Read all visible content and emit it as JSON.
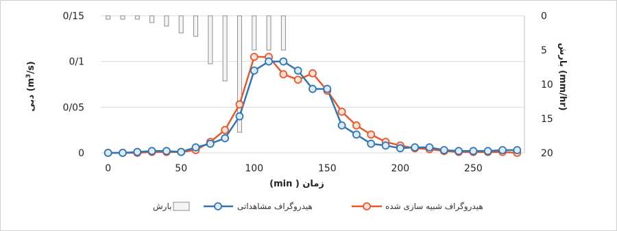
{
  "chart_data": {
    "type": "line",
    "xlabel": "زمان ( min)",
    "ylabel_left": "دبی (m3/s)",
    "ylabel_left_parts": {
      "prefix": "دبی",
      "unit_open": " (m",
      "sup": "3",
      "unit_close": "/s)"
    },
    "ylabel_right": "بارش (mm/hr)",
    "ylabel_right_parts": {
      "prefix": "بارش",
      "unit": " (mm/hr)"
    },
    "xlim": [
      -5,
      285
    ],
    "xticks": [
      "0",
      "50",
      "100",
      "150",
      "200",
      "250"
    ],
    "xtick_values": [
      0,
      50,
      100,
      150,
      200,
      250
    ],
    "ylim_left": [
      0,
      0.15
    ],
    "yticks_left": [
      "0",
      "0/05",
      "0/1",
      "0/15"
    ],
    "ytick_left_values": [
      0,
      0.05,
      0.1,
      0.15
    ],
    "ylim_right": [
      20,
      0
    ],
    "yticks_right": [
      "0",
      "5",
      "10",
      "15",
      "20"
    ],
    "ytick_right_values": [
      0,
      5,
      10,
      15,
      20
    ],
    "grid": true,
    "legend_position": "bottom",
    "series": [
      {
        "name": "بارش",
        "kind": "bar",
        "axis": "right",
        "color": "#a6a6a6",
        "x": [
          0,
          10,
          20,
          30,
          40,
          50,
          60,
          70,
          80,
          90,
          100,
          110,
          120
        ],
        "values": [
          0.5,
          0.5,
          0.5,
          1,
          1.5,
          2.5,
          3,
          7,
          9.5,
          17,
          5,
          5,
          5
        ]
      },
      {
        "name": "هیدروگراف مشاهداتی",
        "kind": "line",
        "axis": "left",
        "color": "#2e75b6",
        "marker_fill": "#ddebf7",
        "x": [
          0,
          10,
          20,
          30,
          40,
          50,
          60,
          70,
          80,
          90,
          100,
          110,
          120,
          130,
          140,
          150,
          160,
          170,
          180,
          190,
          200,
          210,
          220,
          230,
          240,
          250,
          260,
          270,
          280
        ],
        "values": [
          0,
          0,
          0.001,
          0.002,
          0.002,
          0.001,
          0.006,
          0.01,
          0.016,
          0.04,
          0.09,
          0.1,
          0.1,
          0.09,
          0.07,
          0.07,
          0.03,
          0.02,
          0.01,
          0.008,
          0.005,
          0.006,
          0.006,
          0.003,
          0.002,
          0.002,
          0.002,
          0.003,
          0.003
        ]
      },
      {
        "name": "هیدروگراف شبیه سازی شده",
        "kind": "line",
        "axis": "left",
        "color": "#e8562a",
        "marker_fill": "#fde2d3",
        "x": [
          0,
          10,
          20,
          30,
          40,
          50,
          60,
          70,
          80,
          90,
          100,
          110,
          120,
          130,
          140,
          150,
          160,
          170,
          180,
          190,
          200,
          210,
          220,
          230,
          240,
          250,
          260,
          270,
          280
        ],
        "values": [
          0,
          0,
          0,
          0.001,
          0.001,
          0.001,
          0.003,
          0.012,
          0.025,
          0.053,
          0.105,
          0.105,
          0.086,
          0.08,
          0.087,
          0.068,
          0.045,
          0.03,
          0.02,
          0.012,
          0.008,
          0.005,
          0.004,
          0.002,
          0.001,
          0.001,
          0.001,
          0.001,
          0
        ]
      }
    ]
  }
}
